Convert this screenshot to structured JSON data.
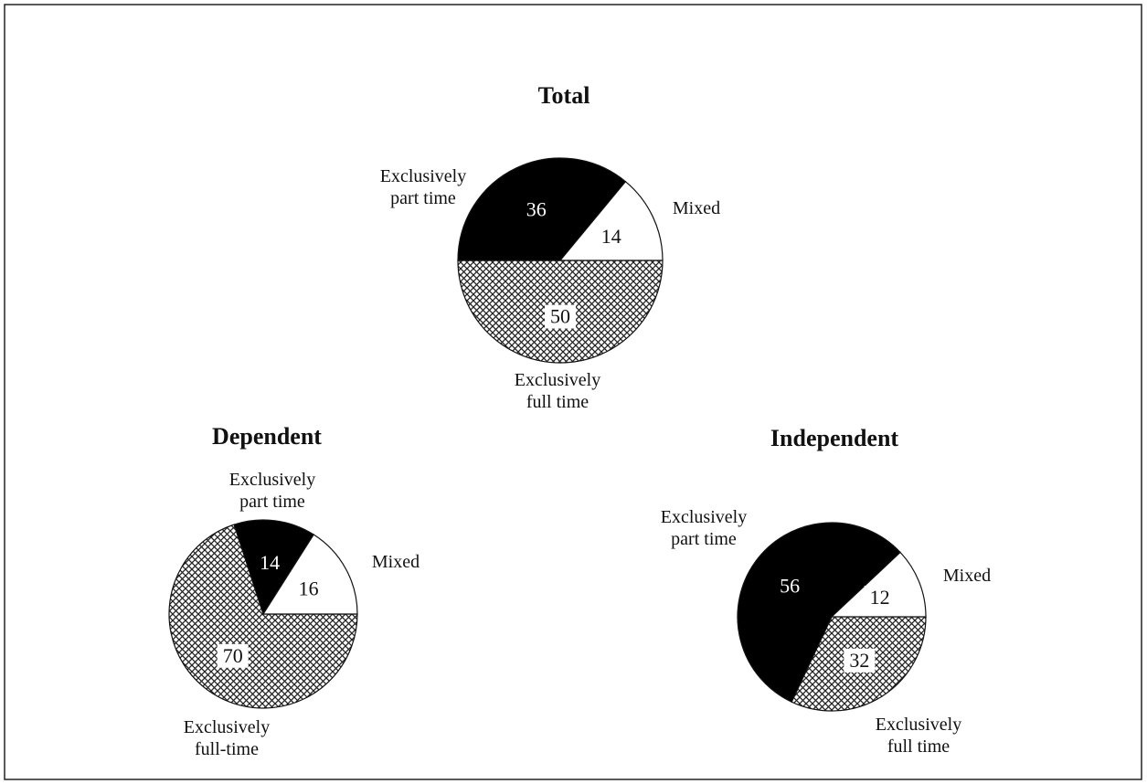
{
  "chart_data": [
    {
      "type": "pie",
      "title": "Total",
      "categories": [
        "Exclusively full time",
        "Exclusively part time",
        "Mixed"
      ],
      "values": [
        50,
        36,
        14
      ]
    },
    {
      "type": "pie",
      "title": "Dependent",
      "categories": [
        "Exclusively full-time",
        "Exclusively part time",
        "Mixed"
      ],
      "values": [
        70,
        14,
        16
      ]
    },
    {
      "type": "pie",
      "title": "Independent",
      "categories": [
        "Exclusively full time",
        "Exclusively part time",
        "Mixed"
      ],
      "values": [
        32,
        56,
        12
      ]
    }
  ]
}
